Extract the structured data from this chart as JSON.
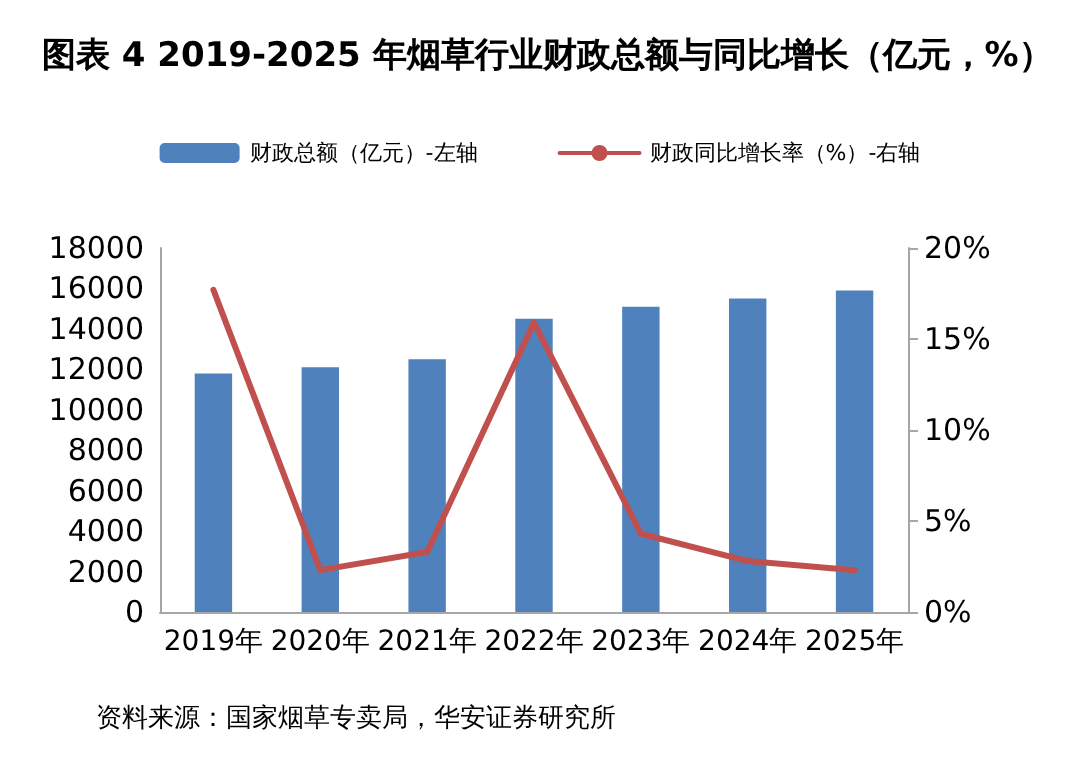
{
  "chart_data": {
    "type": "bar",
    "title": "图表 4 2019-2025 年烟草行业财政总额与同比增长（亿元，%）",
    "categories": [
      "2019年",
      "2020年",
      "2021年",
      "2022年",
      "2023年",
      "2024年",
      "2025年"
    ],
    "series": [
      {
        "name": "财政总额（亿元）-左轴",
        "color": "#4f81bd",
        "values": [
          11800,
          12100,
          12500,
          14500,
          15100,
          15500,
          15900
        ]
      },
      {
        "name": "财政同比增长率（%）-右轴",
        "type": "line",
        "axis": "y2",
        "color": "#c0504d",
        "values": [
          17.7,
          2.3,
          3.3,
          15.9,
          4.3,
          2.8,
          2.3
        ]
      }
    ],
    "ylim": [
      0,
      18000
    ],
    "yticks": [
      0,
      2000,
      4000,
      6000,
      8000,
      10000,
      12000,
      14000,
      16000,
      18000
    ],
    "y2lim": [
      0,
      20
    ],
    "y2ticks": [
      {
        "value": 0,
        "label": "0%"
      },
      {
        "value": 5,
        "label": "5%"
      },
      {
        "value": 10,
        "label": "10%"
      },
      {
        "value": 15,
        "label": "15%"
      },
      {
        "value": 20,
        "label": "20%"
      }
    ],
    "grid": false,
    "legend": "top",
    "marker": "none",
    "annotations": [
      "资料来源：国家烟草专卖局，华安证券研究所"
    ]
  }
}
